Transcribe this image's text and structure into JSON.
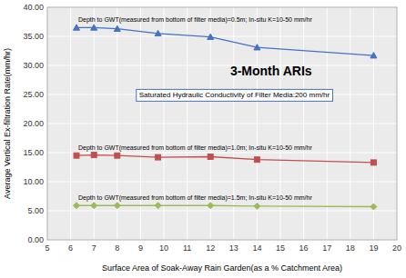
{
  "chart_data": {
    "type": "line",
    "title": "3-Month ARIs",
    "subtitle": "Saturated Hydraulic Conductivity of Filter Media:200 mm/hr",
    "x_label": "Surface Area of Soak-Away Rain Garden(as a %  Catchment Area)",
    "y_label": "Average Vertical Ex-filtration Rate(mm/hr)",
    "x": [
      6.25,
      7,
      8,
      9.75,
      12,
      14,
      19
    ],
    "series": [
      {
        "color": "#4472C4",
        "marker": "triangle",
        "values": [
          36.5,
          36.5,
          36.3,
          35.5,
          34.9,
          33.1,
          31.7
        ]
      },
      {
        "color": "#C0504D",
        "marker": "square",
        "values": [
          14.5,
          14.6,
          14.5,
          14.2,
          14.3,
          13.8,
          13.3
        ]
      },
      {
        "color": "#9BBB59",
        "marker": "diamond",
        "values": [
          5.9,
          5.9,
          5.9,
          5.9,
          5.9,
          5.8,
          5.7
        ]
      }
    ],
    "annotations": [
      "Depth to GWT(measured from bottom of filter media)=0.5m; In-situ K=10-50 mm/hr",
      "Depth to GWT(measured from bottom of filter media)=1.0m; In-situ K=10-50 mm/hr",
      "Depth to GWT(measured from bottom of filter media)=1.5m; In-situ K=10-50 mm/hr"
    ],
    "xlim": [
      5,
      20
    ],
    "ylim": [
      0,
      40
    ],
    "xticks": [
      5,
      6,
      7,
      8,
      9,
      10,
      11,
      12,
      13,
      14,
      15,
      16,
      17,
      18,
      19,
      20
    ],
    "yticks": [
      {
        "value": 0,
        "label": "0.00"
      },
      {
        "value": 5,
        "label": "5.00"
      },
      {
        "value": 10,
        "label": "10.00"
      },
      {
        "value": 15,
        "label": "15.00"
      },
      {
        "value": 20,
        "label": "20.00"
      },
      {
        "value": 25,
        "label": "25.00"
      },
      {
        "value": 30,
        "label": "30.00"
      },
      {
        "value": 35,
        "label": "35.00"
      },
      {
        "value": 40,
        "label": "40.00"
      }
    ],
    "grid": true
  }
}
